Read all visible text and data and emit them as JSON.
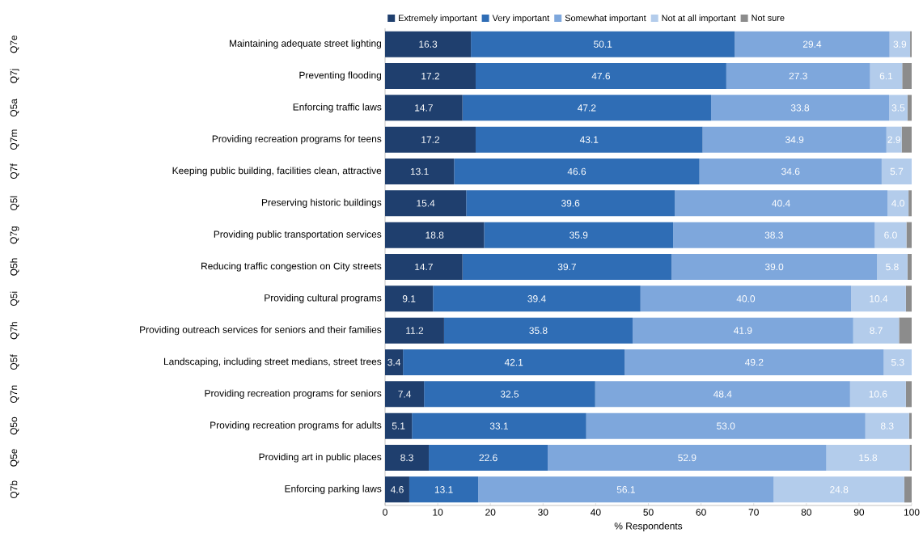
{
  "chart_data": {
    "type": "bar",
    "orientation": "horizontal",
    "stacked": true,
    "legend": "top",
    "grid": false,
    "xlabel": "% Respondents",
    "xlim": [
      0,
      100
    ],
    "xticks": [
      0,
      10,
      20,
      30,
      40,
      50,
      60,
      70,
      80,
      90,
      100
    ],
    "categories": [
      "Maintaining adequate street lighting",
      "Preventing flooding",
      "Enforcing traffic laws",
      "Providing recreation programs for teens",
      "Keeping public building, facilities clean, attractive",
      "Preserving historic buildings",
      "Providing public transportation services",
      "Reducing traffic congestion on City streets",
      "Providing cultural programs",
      "Providing outreach services for seniors and their families",
      "Landscaping, including street medians, street trees",
      "Providing recreation programs for seniors",
      "Providing recreation programs for adults",
      "Providing art in public places",
      "Enforcing parking laws"
    ],
    "annotations": [
      "Q7e",
      "Q7j",
      "Q5a",
      "Q7m",
      "Q7f",
      "Q5l",
      "Q7g",
      "Q5h",
      "Q5i",
      "Q7h",
      "Q5f",
      "Q7n",
      "Q5o",
      "Q5e",
      "Q7b"
    ],
    "series": [
      {
        "name": "Extremely important",
        "color": "#1f3f6e",
        "values": [
          16.3,
          17.2,
          14.7,
          17.2,
          13.1,
          15.4,
          18.8,
          14.7,
          9.1,
          11.2,
          3.4,
          7.4,
          5.1,
          8.3,
          4.6
        ],
        "value_labels": [
          "16.3",
          "17.2",
          "14.7",
          "17.2",
          "13.1",
          "15.4",
          "18.8",
          "14.7",
          "9.1",
          "11.2",
          "3.4",
          "7.4",
          "5.1",
          "8.3",
          "4.6"
        ]
      },
      {
        "name": "Very important",
        "color": "#2f6db5",
        "values": [
          50.1,
          47.6,
          47.2,
          43.1,
          46.6,
          39.6,
          35.9,
          39.7,
          39.4,
          35.8,
          42.1,
          32.5,
          33.1,
          22.6,
          13.1
        ],
        "value_labels": [
          "50.1",
          "47.6",
          "47.2",
          "43.1",
          "46.6",
          "39.6",
          "35.9",
          "39.7",
          "39.4",
          "35.8",
          "42.1",
          "32.5",
          "33.1",
          "22.6",
          "13.1"
        ]
      },
      {
        "name": "Somewhat important",
        "color": "#7ea7dc",
        "values": [
          29.4,
          27.3,
          33.8,
          34.9,
          34.6,
          40.4,
          38.3,
          39.0,
          40.0,
          41.9,
          49.2,
          48.4,
          53.0,
          52.9,
          56.1
        ],
        "value_labels": [
          "29.4",
          "27.3",
          "33.8",
          "34.9",
          "34.6",
          "40.4",
          "38.3",
          "39.0",
          "40.0",
          "41.9",
          "49.2",
          "48.4",
          "53.0",
          "52.9",
          "56.1"
        ]
      },
      {
        "name": "Not at all important",
        "color": "#b3cceb",
        "values": [
          3.9,
          6.1,
          3.5,
          2.9,
          5.7,
          4.0,
          6.0,
          5.8,
          10.4,
          8.7,
          5.3,
          10.6,
          8.3,
          15.8,
          24.8
        ],
        "value_labels": [
          "3.9",
          "6.1",
          "3.5",
          "2.9",
          "5.7",
          "4.0",
          "6.0",
          "5.8",
          "10.4",
          "8.7",
          "5.3",
          "10.6",
          "8.3",
          "15.8",
          "24.8"
        ]
      },
      {
        "name": "Not sure",
        "color": "#8c8c8c",
        "values": [
          0.3,
          1.8,
          0.8,
          1.9,
          null,
          0.6,
          1.0,
          0.8,
          1.1,
          2.4,
          null,
          1.1,
          0.5,
          0.4,
          1.4
        ]
      }
    ]
  }
}
